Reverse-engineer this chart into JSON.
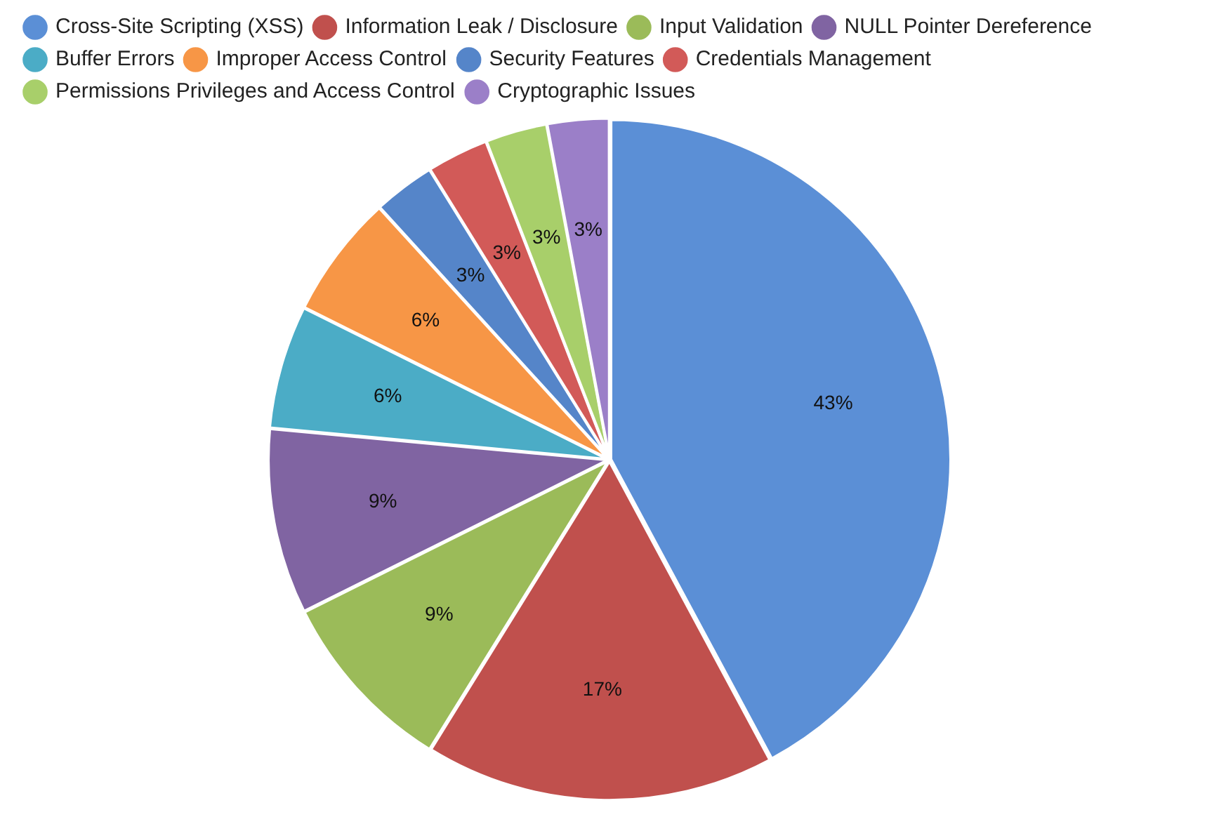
{
  "chart_data": {
    "type": "pie",
    "categories": [
      "Cross-Site Scripting (XSS)",
      "Information Leak / Disclosure",
      "Input Validation",
      "NULL Pointer Dereference",
      "Buffer Errors",
      "Improper Access Control",
      "Security Features",
      "Credentials Management",
      "Permissions Privileges and Access Control",
      "Cryptographic Issues"
    ],
    "values": [
      43,
      17,
      9,
      9,
      6,
      6,
      3,
      3,
      3,
      3
    ],
    "value_labels": [
      "43%",
      "17%",
      "9%",
      "9%",
      "6%",
      "6%",
      "3%",
      "3%",
      "3%",
      "3%"
    ],
    "colors": [
      "#5b8fd6",
      "#c0504d",
      "#9bbb59",
      "#8064a2",
      "#4bacc6",
      "#f79646",
      "#5585c9",
      "#d25a58",
      "#a8cf6a",
      "#9b7fc8"
    ],
    "legend": "top left"
  }
}
